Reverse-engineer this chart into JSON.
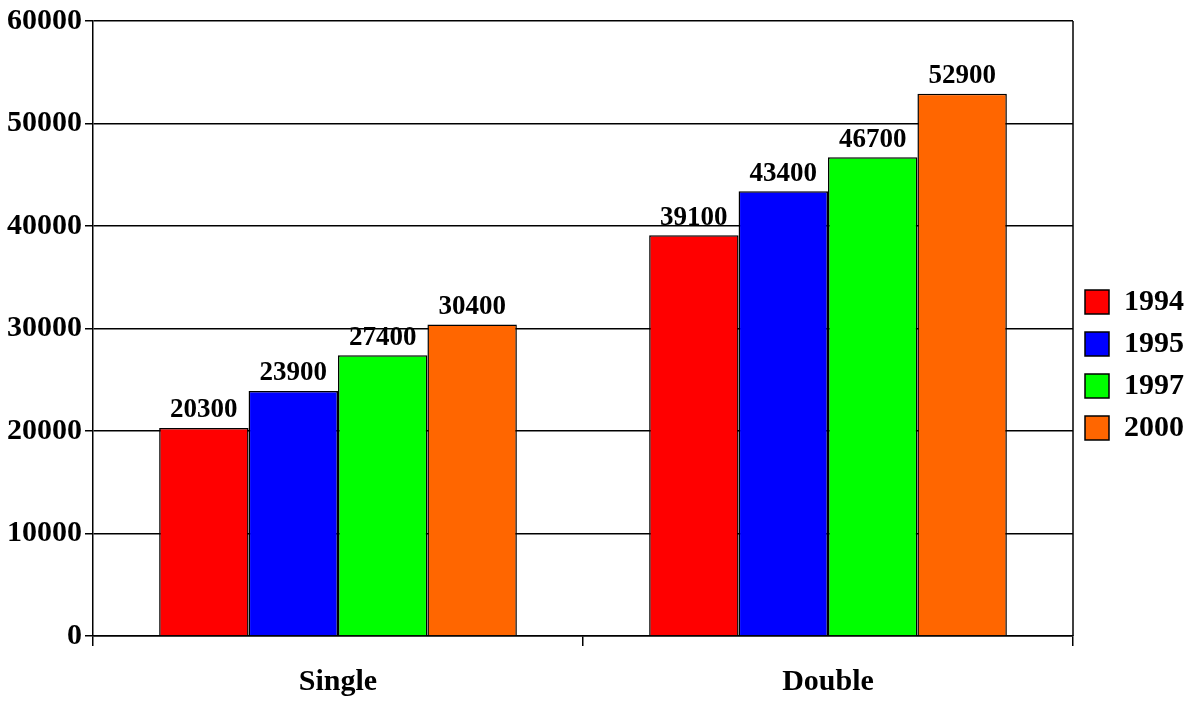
{
  "chart_data": {
    "type": "bar",
    "categories": [
      "Single",
      "Double"
    ],
    "series": [
      {
        "name": "1994",
        "color": "#ff0000",
        "values": [
          20300,
          39100
        ]
      },
      {
        "name": "1995",
        "color": "#0000ff",
        "values": [
          23900,
          43400
        ]
      },
      {
        "name": "1997",
        "color": "#00ff00",
        "values": [
          27400,
          46700
        ]
      },
      {
        "name": "2000",
        "color": "#ff6600",
        "values": [
          30400,
          52900
        ]
      }
    ],
    "ylim": [
      0,
      60000
    ],
    "yticks": [
      0,
      10000,
      20000,
      30000,
      40000,
      50000,
      60000
    ],
    "grid": "y",
    "legend": "right",
    "data_labels": true
  }
}
